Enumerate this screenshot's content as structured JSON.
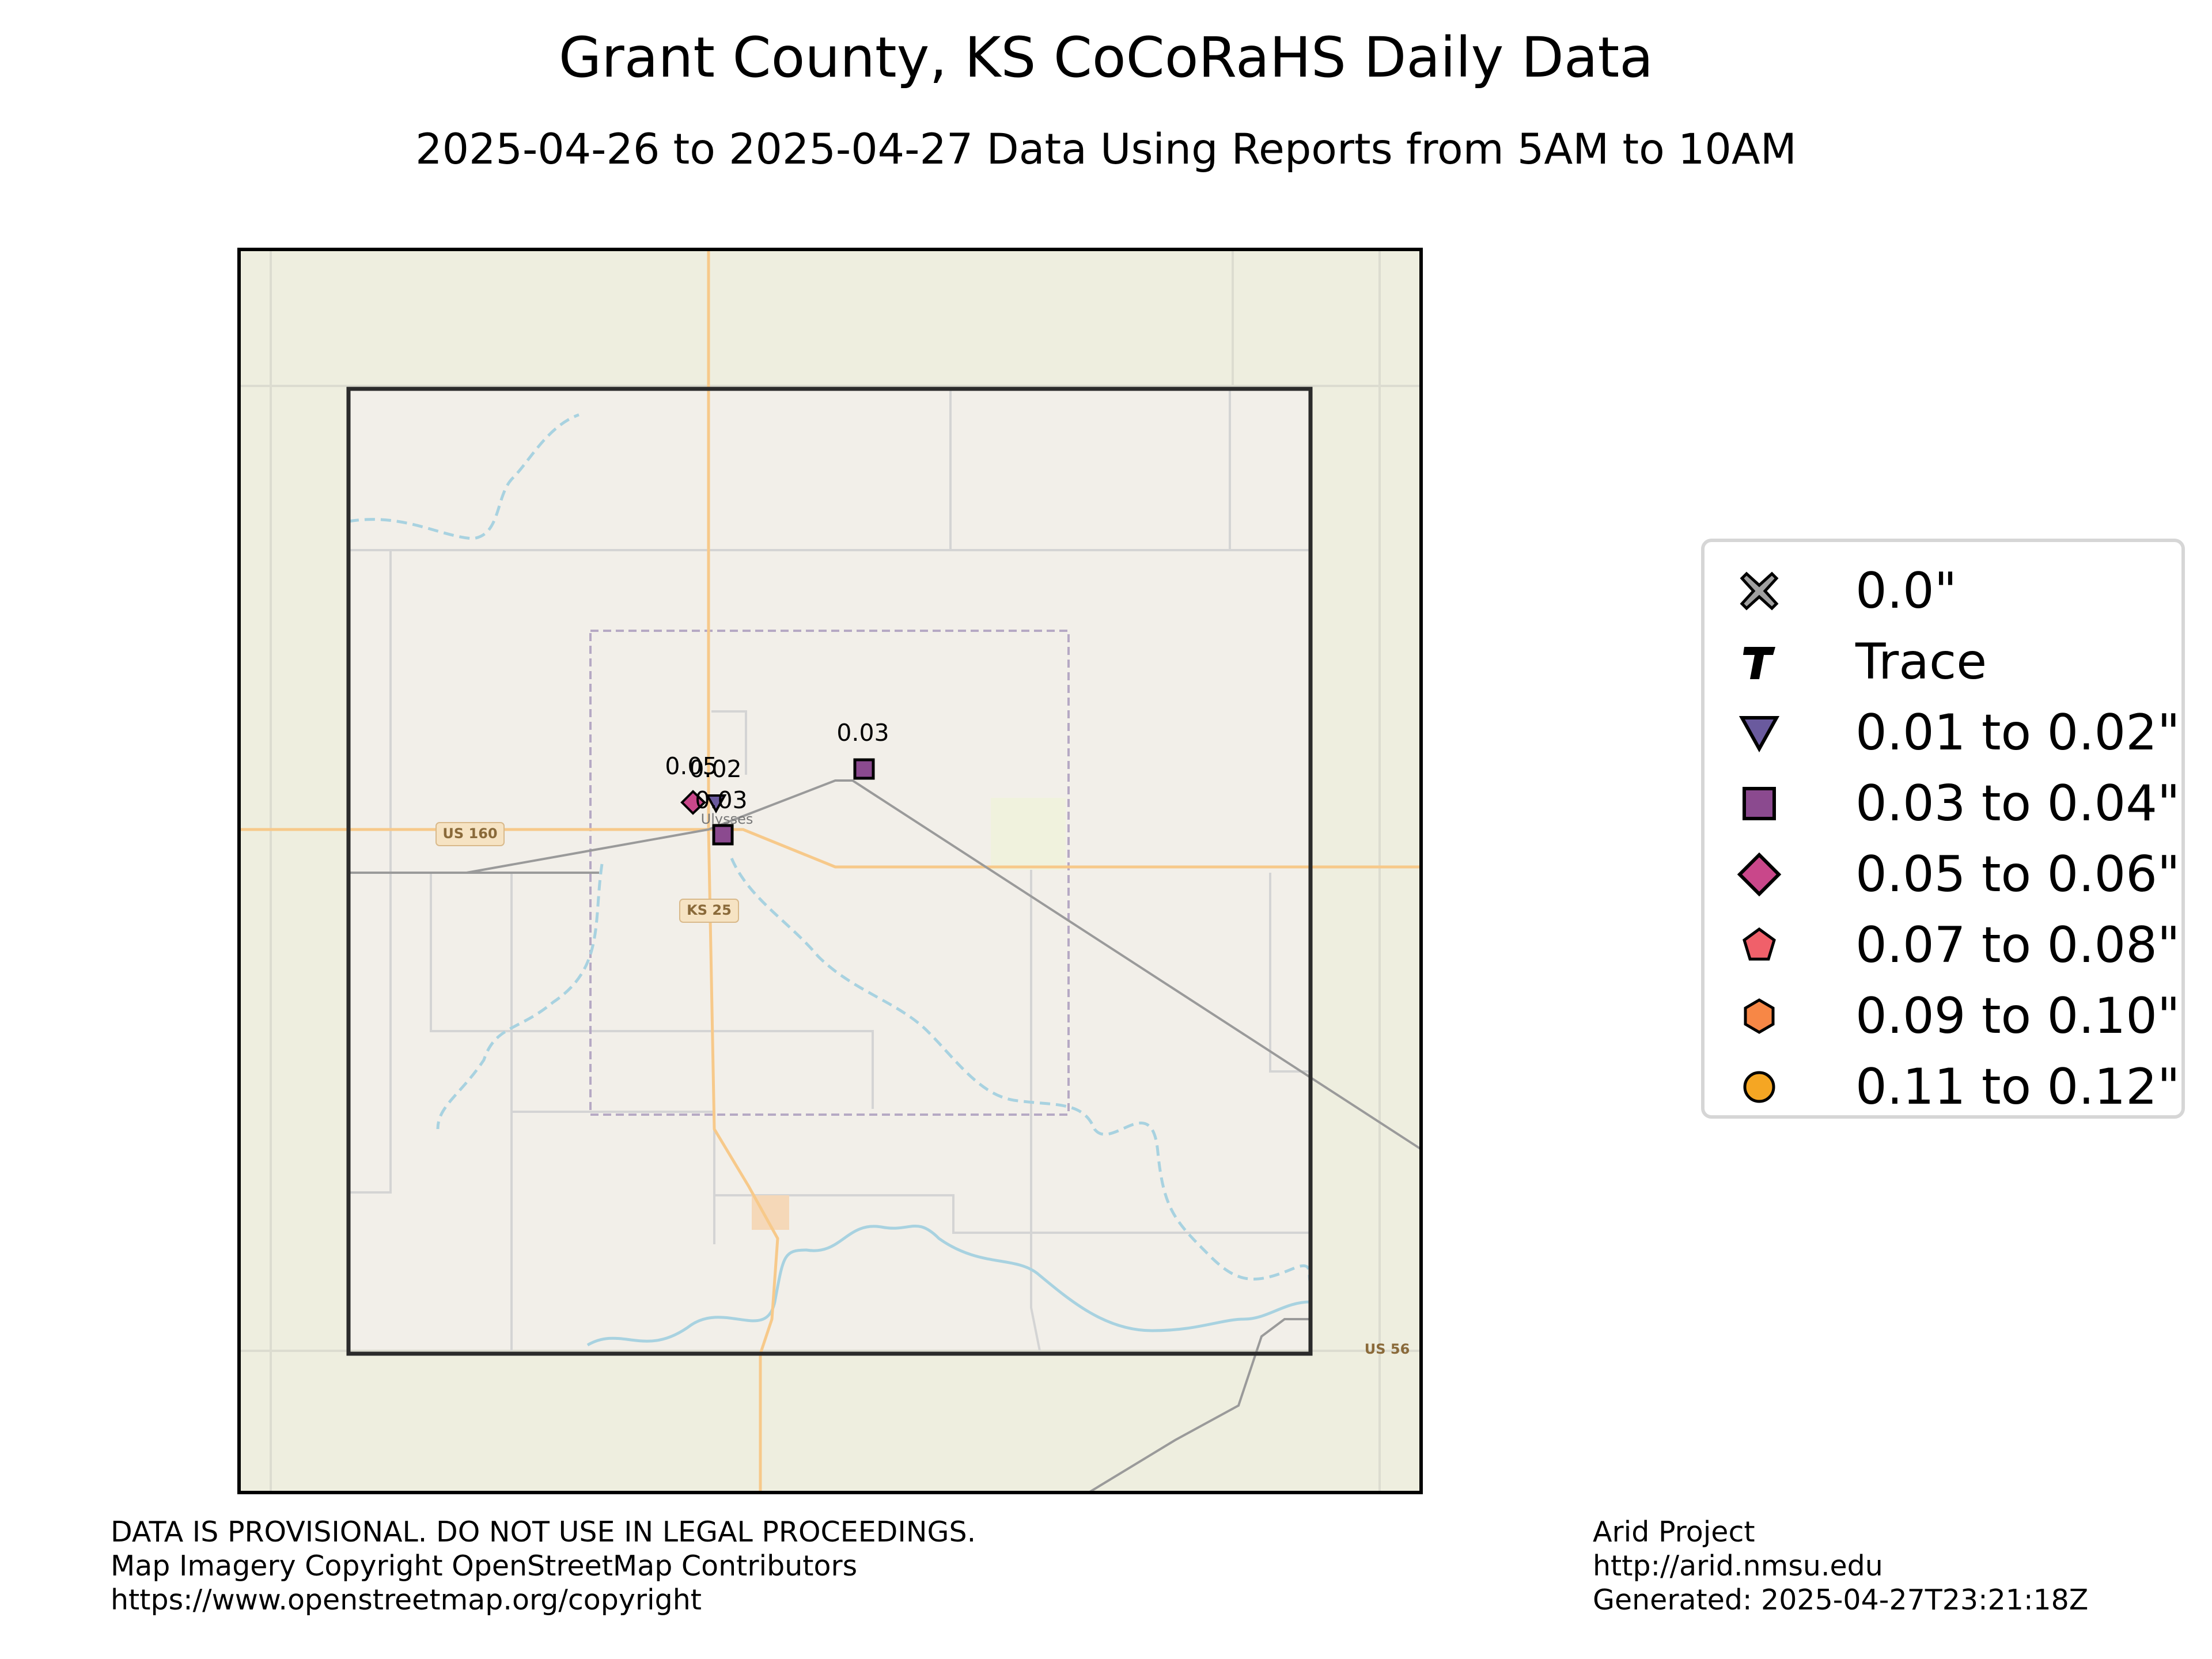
{
  "title": "Grant County, KS CoCoRaHS Daily Data",
  "subtitle": "2025-04-26 to 2025-04-27 Data Using Reports from 5AM to 10AM",
  "map": {
    "road_labels": [
      "US 160",
      "KS 25",
      "US 56"
    ],
    "place_labels": [
      "Ulysses"
    ],
    "stations": [
      {
        "value": "0.05",
        "category": "0.05 to 0.06\""
      },
      {
        "value": "0.02",
        "category": "0.01 to 0.02\""
      },
      {
        "value": "0.03",
        "category": "0.03 to 0.04\""
      },
      {
        "value": "0.03",
        "category": "0.03 to 0.04\""
      }
    ]
  },
  "legend": {
    "items": [
      {
        "label": "0.0\"",
        "symbol": "x-cross-icon",
        "color": "#a0a0a0"
      },
      {
        "label": "Trace",
        "symbol": "trace-t-icon",
        "color": "#000000"
      },
      {
        "label": "0.01 to 0.02\"",
        "symbol": "triangle-down-icon",
        "color": "#6a5a9e"
      },
      {
        "label": "0.03 to 0.04\"",
        "symbol": "square-icon",
        "color": "#8b4a8f"
      },
      {
        "label": "0.05 to 0.06\"",
        "symbol": "diamond-icon",
        "color": "#c9478a"
      },
      {
        "label": "0.07 to 0.08\"",
        "symbol": "pentagon-icon",
        "color": "#f0606a"
      },
      {
        "label": "0.09 to 0.10\"",
        "symbol": "hexagon-icon",
        "color": "#f78746"
      },
      {
        "label": "0.11 to 0.12\"",
        "symbol": "circle-icon",
        "color": "#f5a623"
      }
    ]
  },
  "footer": {
    "left": [
      "DATA IS PROVISIONAL. DO NOT USE IN LEGAL PROCEEDINGS.",
      "Map Imagery Copyright OpenStreetMap Contributors",
      "https://www.openstreetmap.org/copyright"
    ],
    "right": [
      "Arid Project",
      "http://arid.nmsu.edu",
      "Generated: 2025-04-27T23:21:18Z"
    ]
  }
}
